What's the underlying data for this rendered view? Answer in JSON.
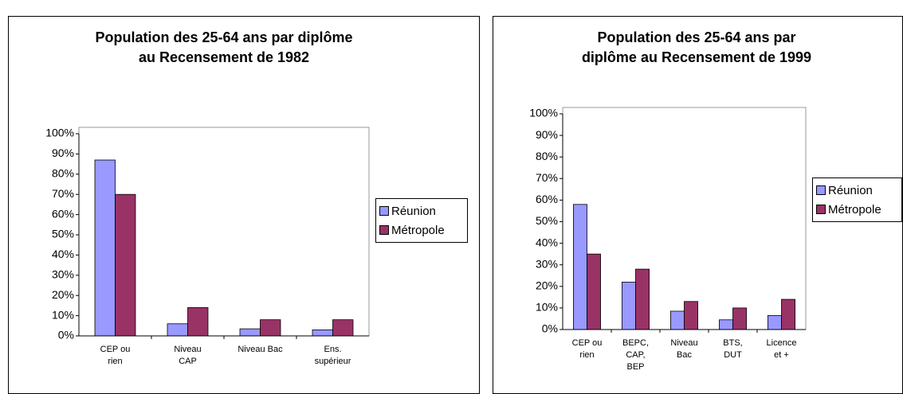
{
  "chart_data": [
    {
      "type": "bar",
      "title": "Population des 25-64 ans par diplôme\nau Recensement de 1982",
      "categories": [
        "CEP ou\nrien",
        "Niveau\nCAP",
        "Niveau Bac",
        "Ens.\nsupérieur"
      ],
      "series": [
        {
          "name": "Réunion",
          "color": "#9999ff",
          "values": [
            87,
            6,
            3.5,
            3
          ]
        },
        {
          "name": "Métropole",
          "color": "#993366",
          "values": [
            70,
            14,
            8,
            8
          ]
        }
      ],
      "ylim": [
        0,
        100
      ],
      "yticks": [
        {
          "value": 0,
          "label": "0%"
        },
        {
          "value": 10,
          "label": "10%"
        },
        {
          "value": 20,
          "label": "20%"
        },
        {
          "value": 30,
          "label": "30%"
        },
        {
          "value": 40,
          "label": "40%"
        },
        {
          "value": 50,
          "label": "50%"
        },
        {
          "value": 60,
          "label": "60%"
        },
        {
          "value": 70,
          "label": "70%"
        },
        {
          "value": 80,
          "label": "80%"
        },
        {
          "value": 90,
          "label": "90%"
        },
        {
          "value": 100,
          "label": "100%"
        }
      ],
      "legend": "right"
    },
    {
      "type": "bar",
      "title": "Population des 25-64 ans par\ndiplôme au Recensement de 1999",
      "categories": [
        "CEP ou\nrien",
        "BEPC,\nCAP,\nBEP",
        "Niveau\nBac",
        "BTS,\nDUT",
        "Licence\net +"
      ],
      "series": [
        {
          "name": "Réunion",
          "color": "#9999ff",
          "values": [
            58,
            22,
            8.5,
            4.5,
            6.5
          ]
        },
        {
          "name": "Métropole",
          "color": "#993366",
          "values": [
            35,
            28,
            13,
            10,
            14
          ]
        }
      ],
      "ylim": [
        0,
        100
      ],
      "yticks": [
        {
          "value": 0,
          "label": "0%"
        },
        {
          "value": 10,
          "label": "10%"
        },
        {
          "value": 20,
          "label": "20%"
        },
        {
          "value": 30,
          "label": "30%"
        },
        {
          "value": 40,
          "label": "40%"
        },
        {
          "value": 50,
          "label": "50%"
        },
        {
          "value": 60,
          "label": "60%"
        },
        {
          "value": 70,
          "label": "70%"
        },
        {
          "value": 80,
          "label": "80%"
        },
        {
          "value": 90,
          "label": "90%"
        },
        {
          "value": 100,
          "label": "100%"
        }
      ],
      "legend": "right"
    }
  ]
}
